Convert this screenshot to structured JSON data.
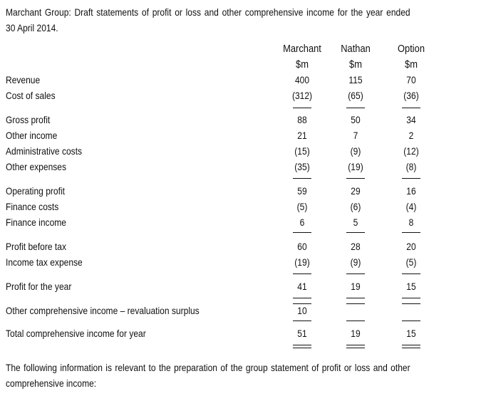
{
  "title": {
    "line1": "Marchant Group: Draft statements of profit or loss and other comprehensive income for the year ended",
    "line2": "30 April 2014."
  },
  "columns": [
    {
      "name": "Marchant",
      "unit": "$m"
    },
    {
      "name": "Nathan",
      "unit": "$m"
    },
    {
      "name": "Option",
      "unit": "$m"
    }
  ],
  "rows": [
    {
      "label": "Revenue",
      "values": [
        "400",
        "115",
        "70"
      ]
    },
    {
      "label": "Cost of sales",
      "values": [
        "(312)",
        "(65)",
        "(36)"
      ]
    },
    {
      "label": "Gross profit",
      "values": [
        "88",
        "50",
        "34"
      ]
    },
    {
      "label": "Other income",
      "values": [
        "21",
        "7",
        "2"
      ]
    },
    {
      "label": "Administrative costs",
      "values": [
        "(15)",
        "(9)",
        "(12)"
      ]
    },
    {
      "label": "Other expenses",
      "values": [
        "(35)",
        "(19)",
        "(8)"
      ]
    },
    {
      "label": "Operating profit",
      "values": [
        "59",
        "29",
        "16"
      ]
    },
    {
      "label": "Finance costs",
      "values": [
        "(5)",
        "(6)",
        "(4)"
      ]
    },
    {
      "label": "Finance income",
      "values": [
        "6",
        "5",
        "8"
      ]
    },
    {
      "label": "Profit before tax",
      "values": [
        "60",
        "28",
        "20"
      ]
    },
    {
      "label": "Income tax expense",
      "values": [
        "(19)",
        "(9)",
        "(5)"
      ]
    },
    {
      "label": "Profit for the year",
      "values": [
        "41",
        "19",
        "15"
      ]
    },
    {
      "label": "Other comprehensive income – revaluation surplus",
      "values": [
        "10",
        "",
        ""
      ]
    },
    {
      "label": "Total comprehensive income for year",
      "values": [
        "51",
        "19",
        "15"
      ]
    }
  ],
  "footer": {
    "line1": "The following information is relevant to the preparation of the group statement of profit or loss and other",
    "line2": "comprehensive income:"
  }
}
